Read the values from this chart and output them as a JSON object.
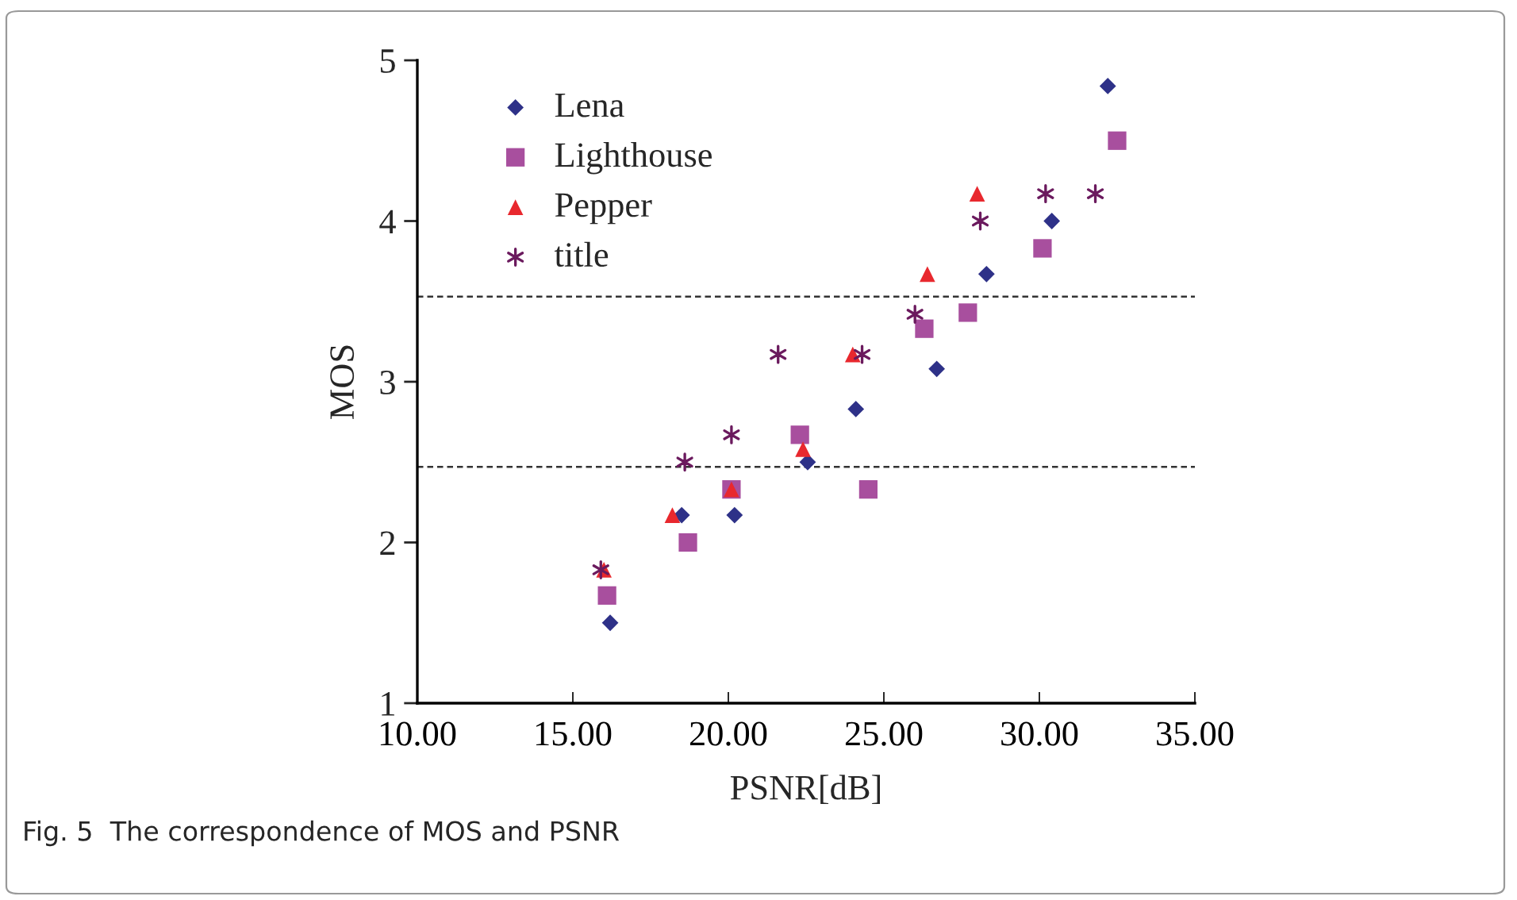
{
  "chart_data": {
    "type": "scatter",
    "xlabel": "PSNR[dB]",
    "ylabel": "MOS",
    "xlim": [
      10,
      35
    ],
    "ylim": [
      1,
      5
    ],
    "xticks": [
      {
        "value": 10,
        "label": "10.00"
      },
      {
        "value": 15,
        "label": "15.00"
      },
      {
        "value": 20,
        "label": "20.00"
      },
      {
        "value": 25,
        "label": "25.00"
      },
      {
        "value": 30,
        "label": "30.00"
      },
      {
        "value": 35,
        "label": "35.00"
      }
    ],
    "yticks": [
      1,
      2,
      3,
      4,
      5
    ],
    "grid": false,
    "legend": "top left",
    "series": [
      {
        "name": "Lena",
        "color": "#2e3188",
        "marker": "diamond",
        "x": [
          16.2,
          18.5,
          20.2,
          22.55,
          24.1,
          26.7,
          28.3,
          30.4,
          32.2
        ],
        "values": [
          1.5,
          2.17,
          2.17,
          2.5,
          2.83,
          3.08,
          3.67,
          4.0,
          4.84
        ]
      },
      {
        "name": "Lighthouse",
        "color": "#a84f9e",
        "marker": "square",
        "x": [
          16.1,
          18.7,
          20.1,
          22.3,
          24.5,
          26.3,
          27.7,
          30.1,
          32.5
        ],
        "values": [
          1.67,
          2.0,
          2.33,
          2.67,
          2.33,
          3.33,
          3.43,
          3.83,
          4.5
        ]
      },
      {
        "name": "Pepper",
        "color": "#e8282e",
        "marker": "triangle",
        "x": [
          16.0,
          18.2,
          20.1,
          22.4,
          24.0,
          26.4,
          28.0
        ],
        "values": [
          1.83,
          2.17,
          2.33,
          2.58,
          3.17,
          3.67,
          4.17
        ]
      },
      {
        "name": "title",
        "color": "#6b1a5e",
        "marker": "cross",
        "x": [
          15.9,
          18.6,
          20.1,
          21.6,
          24.3,
          26.0,
          28.1,
          30.2,
          31.8
        ],
        "values": [
          1.83,
          2.5,
          2.67,
          3.17,
          3.17,
          3.42,
          4.0,
          4.17,
          4.17
        ]
      }
    ],
    "ref_lines": [
      {
        "axis": "y",
        "value": 3.53,
        "color": "#333333",
        "line_style": "dashed"
      },
      {
        "axis": "y",
        "value": 2.47,
        "color": "#333333",
        "line_style": "dashed"
      }
    ],
    "annotations": [
      "Fig. 5  The correspondence of MOS and PSNR"
    ]
  }
}
